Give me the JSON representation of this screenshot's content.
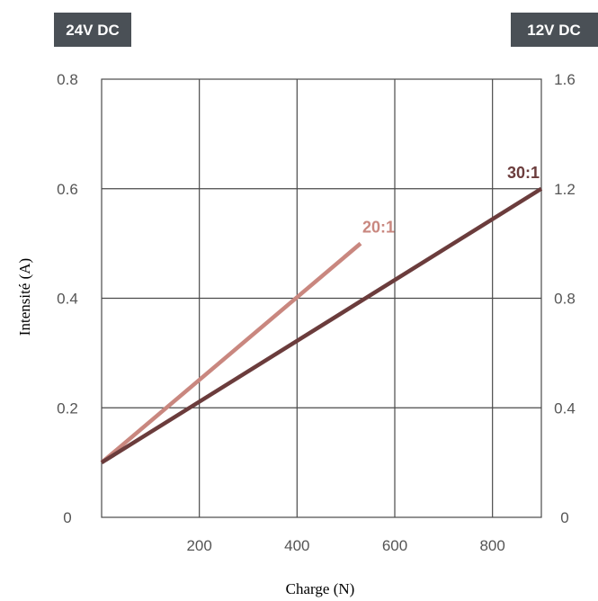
{
  "badges": {
    "left": "24V DC",
    "right": "12V DC"
  },
  "colors": {
    "badge": "#4a5056",
    "series_20": "#c9877f",
    "series_30": "#6b3c3c",
    "grid": "#4a4a4a"
  },
  "chart_data": {
    "type": "line",
    "xlabel": "Charge (N)",
    "ylabel": "Intensité (A)",
    "xlim": [
      0,
      900
    ],
    "ylim": [
      0,
      0.8
    ],
    "y2lim": [
      0,
      1.6
    ],
    "xticks": [
      200,
      400,
      600,
      800
    ],
    "xtick_labels": [
      "200",
      "400",
      "600",
      "800"
    ],
    "yticks": [
      0,
      0.2,
      0.4,
      0.6,
      0.8
    ],
    "ytick_labels": [
      "0",
      "0.2",
      "0.4",
      "0.6",
      "0.8"
    ],
    "y2ticks": [
      0,
      0.4,
      0.8,
      1.2,
      1.6
    ],
    "y2tick_labels": [
      "0",
      "0.4",
      "0.8",
      "1.2",
      "1.6"
    ],
    "grid": true,
    "series": [
      {
        "name": "20:1",
        "x": [
          0,
          530
        ],
        "y": [
          0.1,
          0.5
        ],
        "color": "#c9877f"
      },
      {
        "name": "30:1",
        "x": [
          0,
          900
        ],
        "y": [
          0.1,
          0.6
        ],
        "color": "#6b3c3c"
      }
    ]
  }
}
